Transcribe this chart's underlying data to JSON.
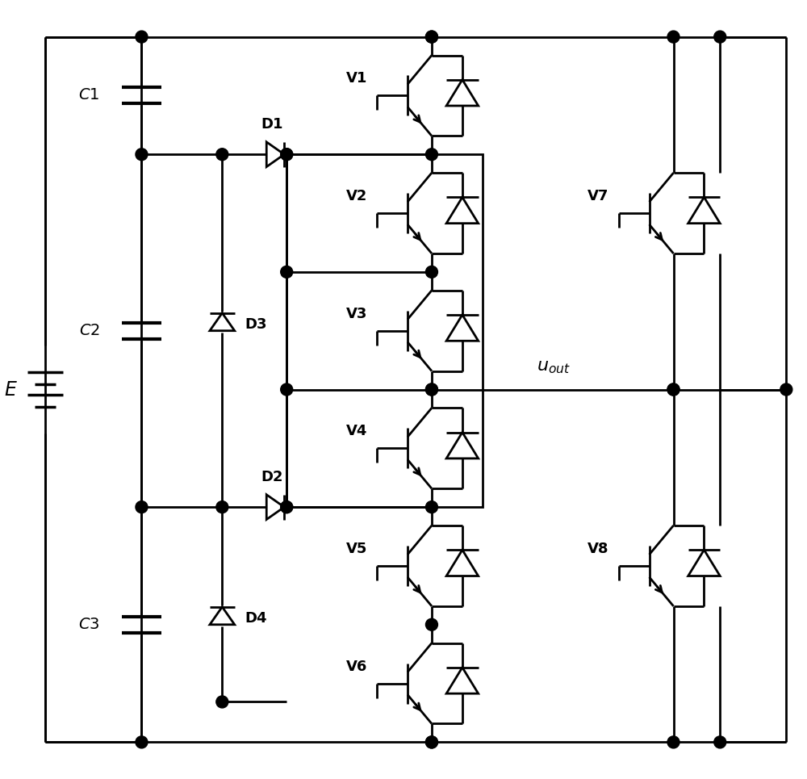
{
  "bg": "#ffffff",
  "lc": "#000000",
  "lw": 2.0,
  "fw": 10.0,
  "fh": 9.65,
  "xlim": [
    0,
    10
  ],
  "ylim": [
    0,
    9.65
  ]
}
